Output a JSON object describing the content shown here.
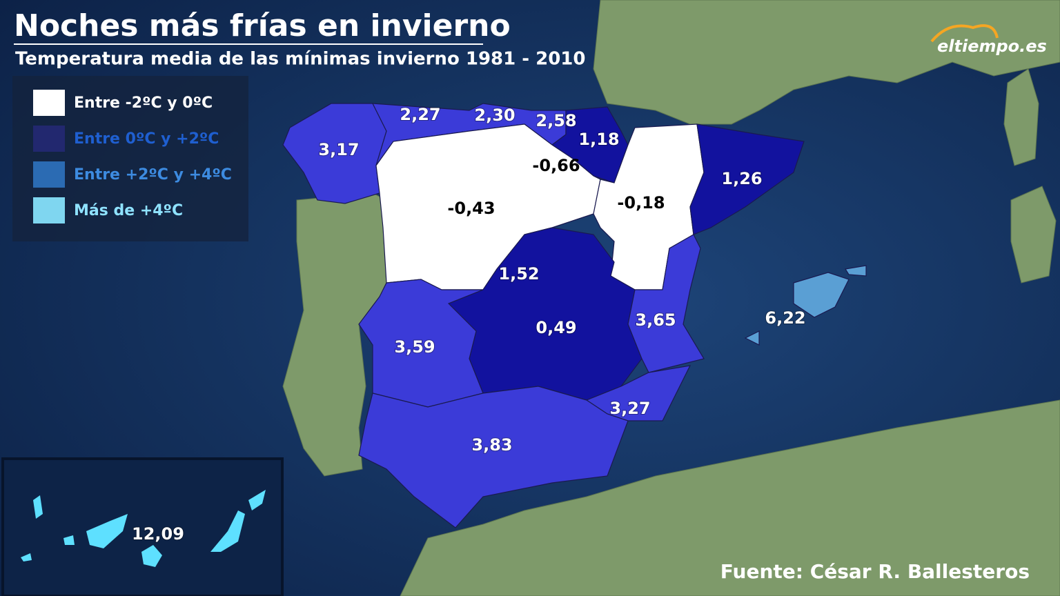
{
  "header": {
    "title": "Noches más frías en invierno",
    "subtitle": "Temperatura media de las mínimas invierno 1981 - 2010"
  },
  "logo": "eltiempo.es",
  "legend": [
    "Entre -2ºC y 0ºC",
    "Entre 0ºC y +2ºC",
    "Entre +2ºC y +4ºC",
    "Más de +4ºC"
  ],
  "regions": [
    {
      "label": "3,17"
    },
    {
      "label": "2,27"
    },
    {
      "label": "2,30"
    },
    {
      "label": "2,58"
    },
    {
      "label": "1,18"
    },
    {
      "label": "-0,66"
    },
    {
      "label": "-0,43"
    },
    {
      "label": "-0,18"
    },
    {
      "label": "1,26"
    },
    {
      "label": "1,52"
    },
    {
      "label": "0,49"
    },
    {
      "label": "3,65"
    },
    {
      "label": "3,59"
    },
    {
      "label": "3,27"
    },
    {
      "label": "3,83"
    },
    {
      "label": "6,22"
    },
    {
      "label": "12,09"
    }
  ],
  "source": "Fuente: César R. Ballesteros"
}
